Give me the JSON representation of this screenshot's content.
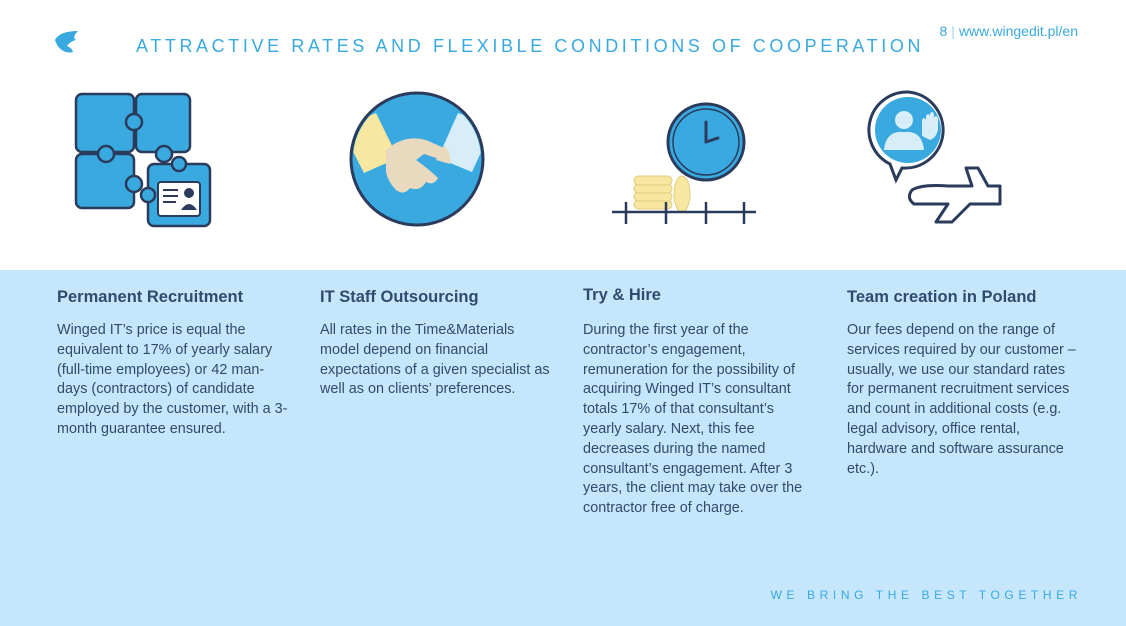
{
  "header": {
    "title": "ATTRACTIVE RATES AND FLEXIBLE CONDITIONS OF COOPERATION",
    "page_number": "8",
    "separator": "|",
    "url": "www.wingedit.pl/en"
  },
  "icons": [
    "logo-icon",
    "puzzle-icon",
    "handshake-icon",
    "clock-coins-icon",
    "team-plane-icon"
  ],
  "colors": {
    "accent": "#39a9e0",
    "band": "#c6e6fb",
    "text": "#2f4b6e",
    "outline": "#2a3b5c"
  },
  "columns": [
    {
      "heading": "Permanent Recruitment",
      "body": "Winged IT’s price is equal  the equivalent to 17% of yearly salary (full-time employees) or 42 man-days (contractors) of candidate employed by the customer, with a 3-month guarantee ensured."
    },
    {
      "heading": "IT Staff Outsourcing",
      "body": "All rates in the Time&Materials model depend on financial expectations of a given specialist as well as on clients’ preferences."
    },
    {
      "heading": "Try & Hire",
      "body": "During the first year of the contractor’s engagement, remuneration for the possibility of acquiring Winged IT’s consultant totals 17% of that consultant’s yearly salary. Next, this fee decreases during the named consultant’s engagement. After 3 years, the client may take over the contractor free of charge."
    },
    {
      "heading": "Team creation in Poland",
      "body": "Our fees depend on the range of services required by our customer – usually, we use our standard rates for permanent recruitment services and count in additional costs (e.g. legal advisory, office rental, hardware and software assurance etc.)."
    }
  ],
  "footer": {
    "tagline": "WE BRING THE BEST TOGETHER"
  }
}
